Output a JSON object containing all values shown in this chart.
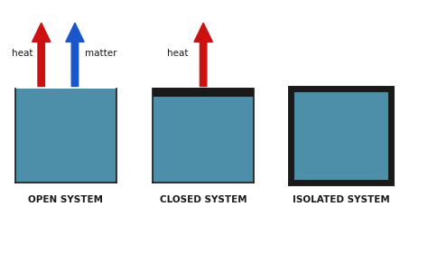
{
  "bg_color": "#ffffff",
  "box_color": "#4d8fa8",
  "box_outline_color": "#1a1a1a",
  "label_color": "#1a1a1a",
  "heat_arrow_color": "#cc1111",
  "matter_arrow_color": "#1a55cc",
  "systems": [
    "OPEN SYSTEM",
    "CLOSED SYSTEM",
    "ISOLATED SYSTEM"
  ],
  "fig_width": 4.74,
  "fig_height": 2.81,
  "dpi": 100,
  "xlim": [
    0,
    14
  ],
  "ylim": [
    0,
    10
  ]
}
